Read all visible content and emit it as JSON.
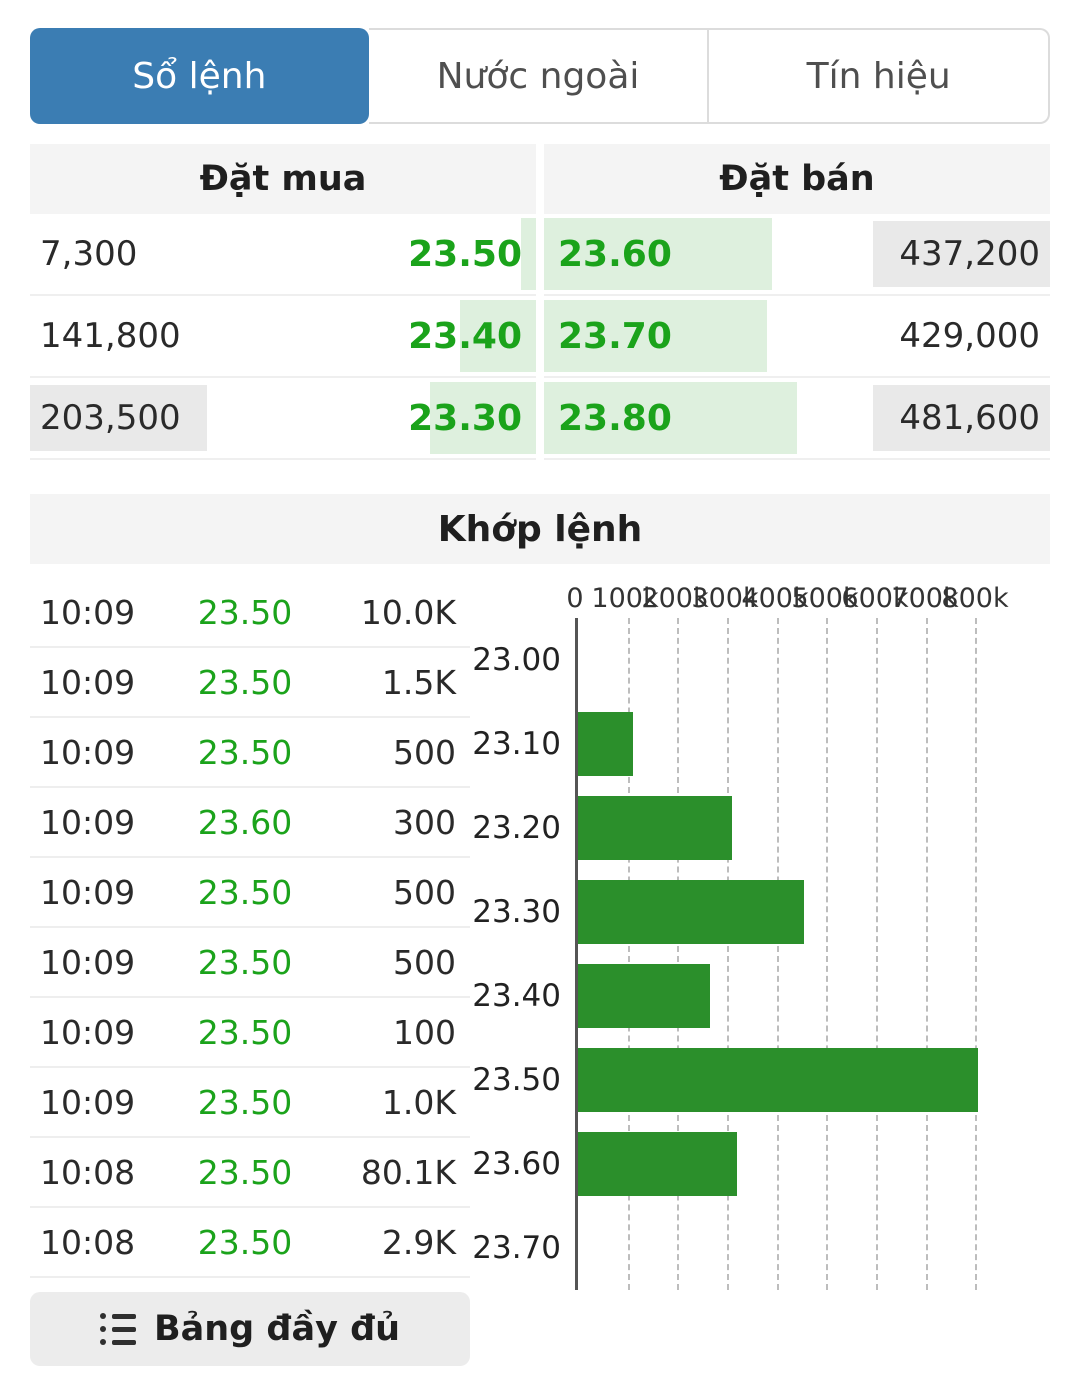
{
  "colors": {
    "accent_blue": "#3b7db3",
    "green_text": "#1ba31b",
    "bar_green": "#2b8f2b",
    "depth_green_bg": "#def0de",
    "highlight_gray": "#e9e9e9"
  },
  "tabs": [
    {
      "label": "Sổ lệnh",
      "active": true
    },
    {
      "label": "Nước ngoài",
      "active": false
    },
    {
      "label": "Tín hiệu",
      "active": false
    }
  ],
  "order_book": {
    "buy_header": "Đặt mua",
    "sell_header": "Đặt bán",
    "buy_rows": [
      {
        "volume": "7,300",
        "price": "23.50",
        "depth_pct": 3,
        "volume_highlight": false
      },
      {
        "volume": "141,800",
        "price": "23.40",
        "depth_pct": 15,
        "volume_highlight": false
      },
      {
        "volume": "203,500",
        "price": "23.30",
        "depth_pct": 21,
        "volume_highlight": true
      }
    ],
    "sell_rows": [
      {
        "price": "23.60",
        "volume": "437,200",
        "depth_pct": 45,
        "volume_highlight": true
      },
      {
        "price": "23.70",
        "volume": "429,000",
        "depth_pct": 44,
        "volume_highlight": false
      },
      {
        "price": "23.80",
        "volume": "481,600",
        "depth_pct": 50,
        "volume_highlight": true
      }
    ]
  },
  "matched": {
    "title": "Khớp lệnh",
    "trades": [
      {
        "time": "10:09",
        "price": "23.50",
        "volume": "10.0K"
      },
      {
        "time": "10:09",
        "price": "23.50",
        "volume": "1.5K"
      },
      {
        "time": "10:09",
        "price": "23.50",
        "volume": "500"
      },
      {
        "time": "10:09",
        "price": "23.60",
        "volume": "300"
      },
      {
        "time": "10:09",
        "price": "23.50",
        "volume": "500"
      },
      {
        "time": "10:09",
        "price": "23.50",
        "volume": "500"
      },
      {
        "time": "10:09",
        "price": "23.50",
        "volume": "100"
      },
      {
        "time": "10:09",
        "price": "23.50",
        "volume": "1.0K"
      },
      {
        "time": "10:08",
        "price": "23.50",
        "volume": "80.1K"
      },
      {
        "time": "10:08",
        "price": "23.50",
        "volume": "2.9K"
      }
    ],
    "full_board_label": "Bảng đầy đủ"
  },
  "chart_data": {
    "type": "bar",
    "orientation": "horizontal",
    "title": "",
    "xlabel": "",
    "ylabel": "",
    "categories": [
      "23.00",
      "23.10",
      "23.20",
      "23.30",
      "23.40",
      "23.50",
      "23.60",
      "23.70"
    ],
    "values": [
      0,
      110000,
      310000,
      455000,
      265000,
      805000,
      320000,
      0
    ],
    "x_ticks": [
      {
        "value": 0,
        "label": "0"
      },
      {
        "value": 100000,
        "label": "100k"
      },
      {
        "value": 200000,
        "label": "200k"
      },
      {
        "value": 300000,
        "label": "300k"
      },
      {
        "value": 400000,
        "label": "400k"
      },
      {
        "value": 500000,
        "label": "500k"
      },
      {
        "value": 600000,
        "label": "600k"
      },
      {
        "value": 700000,
        "label": "700k"
      },
      {
        "value": 800000,
        "label": "800k"
      }
    ],
    "xlim": [
      0,
      950000
    ],
    "grid": "vertical-dashed",
    "legend": "none"
  }
}
